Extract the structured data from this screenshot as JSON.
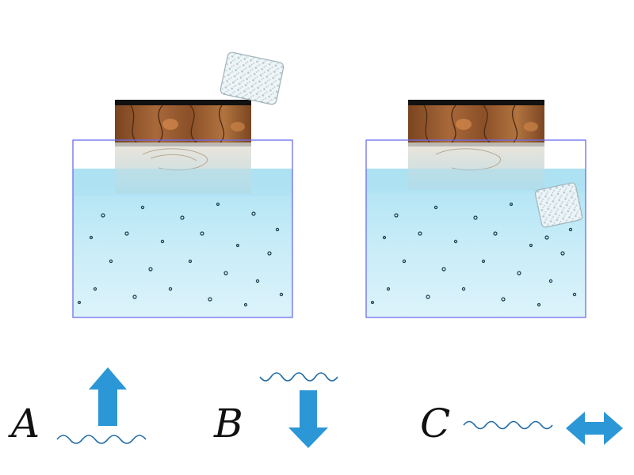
{
  "options": [
    {
      "letter": "A",
      "wave_position": "below",
      "arrow_direction": "up"
    },
    {
      "letter": "B",
      "wave_position": "above",
      "arrow_direction": "down"
    },
    {
      "letter": "C",
      "wave_position": "left",
      "arrow_direction": "left-right"
    }
  ],
  "colors": {
    "water_top": "#b7e6f4",
    "water_bottom": "#d8f1f9",
    "tank_border": "#6b6ef0",
    "wood_dark": "#6b3d1c",
    "wood_light": "#b77a45",
    "wood_lid": "#111111",
    "arrow": "#2b97d6",
    "wave": "#1f6aa5",
    "ice": "#e2eef2"
  },
  "icons": {
    "block": "wooden-block-icon",
    "ice": "ice-cube-icon",
    "arrow_up": "arrow-up-icon",
    "arrow_down": "arrow-down-icon",
    "arrow_lr": "arrow-left-right-icon"
  }
}
